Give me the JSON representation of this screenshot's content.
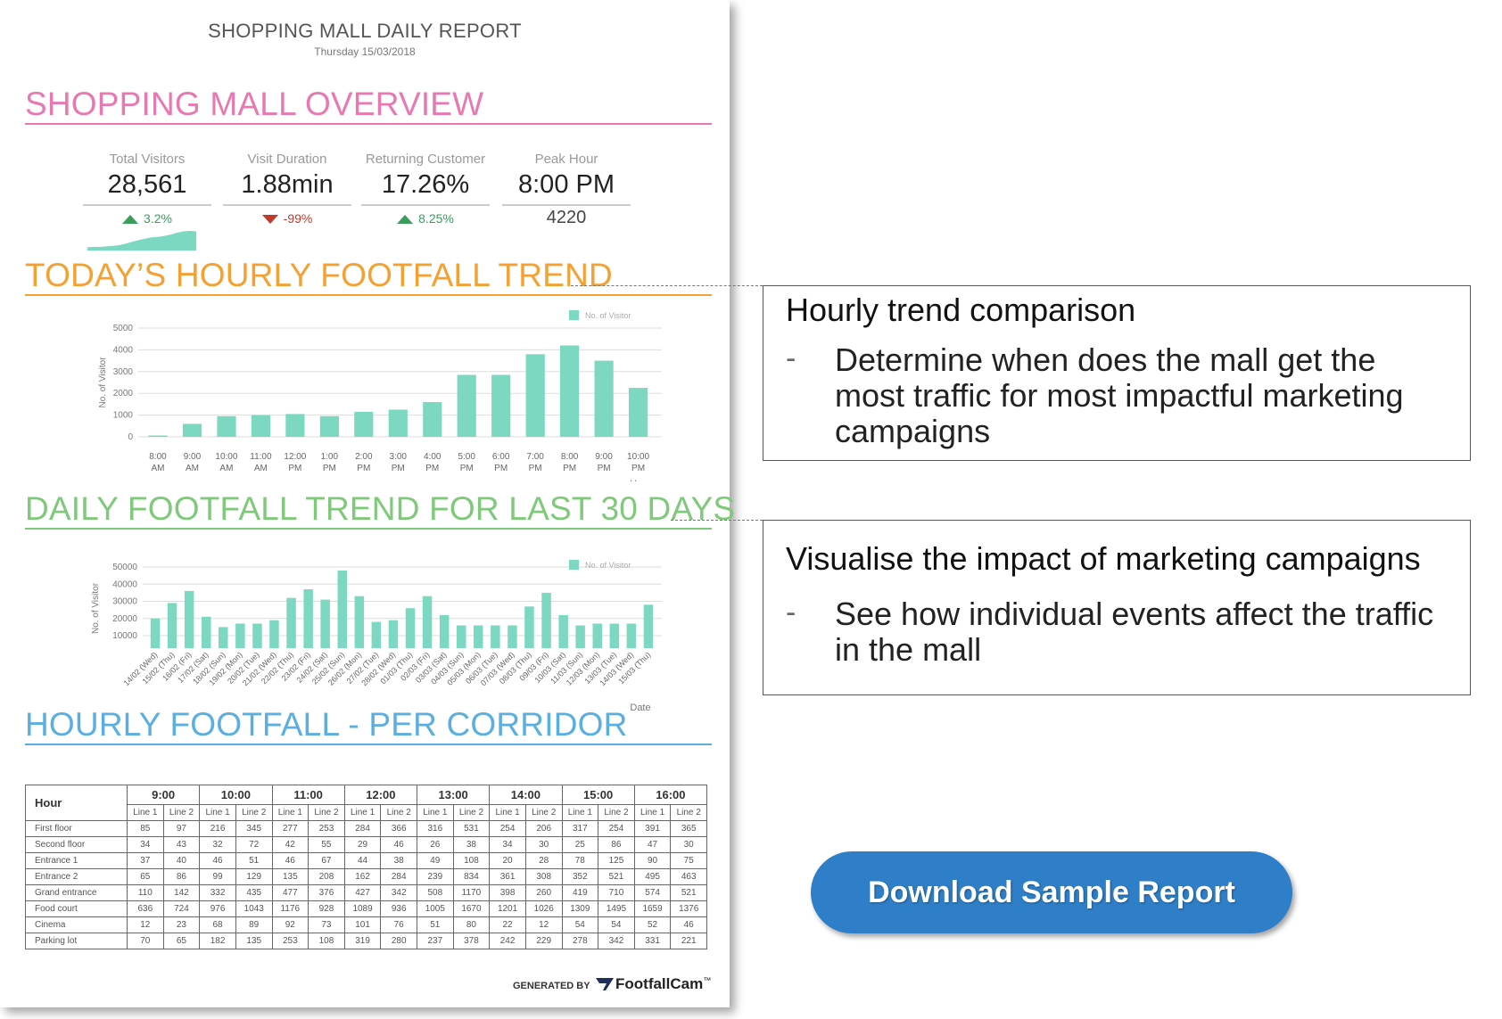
{
  "report": {
    "title": "SHOPPING MALL DAILY REPORT",
    "date": "Thursday 15/03/2018",
    "overview_title": "SHOPPING MALL OVERVIEW",
    "kpis": [
      {
        "label": "Total Visitors",
        "value": "28,561",
        "change": "3.2%",
        "direction": "up"
      },
      {
        "label": "Visit Duration",
        "value": "1.88min",
        "change": "-99%",
        "direction": "down"
      },
      {
        "label": "Returning Customer",
        "value": "17.26%",
        "change": "8.25%",
        "direction": "up"
      },
      {
        "label": "Peak Hour",
        "value": "8:00 PM",
        "sub": "4220"
      }
    ],
    "hourly_title": "TODAY’S HOURLY FOOTFALL TREND",
    "daily_title": "DAILY FOOTFALL TREND FOR LAST 30 DAYS",
    "corridor_title": "HOURLY FOOTFALL - PER CORRIDOR",
    "generated_by": "GENERATED BY",
    "brand": "FootfallCam",
    "brand_tm": "™"
  },
  "colors": {
    "pink": "#e879b0",
    "orange": "#f5a033",
    "green": "#7fc97a",
    "blue": "#5aaee0",
    "bar": "#7dd8c2",
    "button": "#2f7fc8"
  },
  "chart_data": [
    {
      "type": "area",
      "values": [
        0.7,
        0.8,
        0.8,
        0.9,
        1.0,
        1.2,
        1.5,
        1.9,
        2.3,
        2.6,
        2.9,
        3.0,
        3.2,
        3.5,
        3.9,
        4.2,
        4.3,
        4.2
      ]
    },
    {
      "type": "bar",
      "legend": "No. of Visitor",
      "ylabel": "No. of Visitor",
      "xlabel": "Hour",
      "ylim": [
        0,
        5000
      ],
      "yticks": [
        "0",
        "1000",
        "2000",
        "3000",
        "4000",
        "5000"
      ],
      "categories": [
        [
          "8:00",
          "AM"
        ],
        [
          "9:00",
          "AM"
        ],
        [
          "10:00",
          "AM"
        ],
        [
          "11:00",
          "AM"
        ],
        [
          "12:00",
          "PM"
        ],
        [
          "1:00",
          "PM"
        ],
        [
          "2:00",
          "PM"
        ],
        [
          "3:00",
          "PM"
        ],
        [
          "4:00",
          "PM"
        ],
        [
          "5:00",
          "PM"
        ],
        [
          "6:00",
          "PM"
        ],
        [
          "7:00",
          "PM"
        ],
        [
          "8:00",
          "PM"
        ],
        [
          "9:00",
          "PM"
        ],
        [
          "10:00",
          "PM"
        ]
      ],
      "values": [
        60,
        600,
        950,
        1000,
        1050,
        950,
        1150,
        1250,
        1600,
        2850,
        2850,
        3800,
        4200,
        3500,
        2250
      ]
    },
    {
      "type": "bar",
      "legend": "No. of Visitor",
      "ylabel": "No. of Visitor",
      "xlabel": "Date",
      "ylim": [
        0,
        50000
      ],
      "yticks": [
        "10000",
        "20000",
        "30000",
        "40000",
        "50000"
      ],
      "categories": [
        "14/02 (Wed)",
        "15/02 (Thu)",
        "16/02 (Fri)",
        "17/02 (Sat)",
        "18/02 (Sun)",
        "19/02 (Mon)",
        "20/02 (Tue)",
        "21/02 (Wed)",
        "22/02 (Thu)",
        "23/02 (Fri)",
        "24/02 (Sat)",
        "25/02 (Sun)",
        "26/02 (Mon)",
        "27/02 (Tue)",
        "28/02 (Wed)",
        "01/03 (Thu)",
        "02/03 (Fri)",
        "03/03 (Sat)",
        "04/03 (Sun)",
        "05/03 (Mon)",
        "06/03 (Tue)",
        "07/03 (Wed)",
        "08/03 (Thu)",
        "09/03 (Fri)",
        "10/03 (Sat)",
        "11/03 (Sun)",
        "12/03 (Mon)",
        "13/03 (Tue)",
        "14/03 (Wed)",
        "15/03 (Thu)"
      ],
      "values": [
        20000,
        29000,
        36000,
        21000,
        15000,
        17000,
        17000,
        19000,
        32000,
        37000,
        31000,
        48000,
        33000,
        18000,
        19000,
        26000,
        33000,
        22000,
        16000,
        16000,
        16000,
        16000,
        27000,
        35000,
        22000,
        16000,
        17000,
        17000,
        17000,
        28000
      ]
    }
  ],
  "corridor_table": {
    "hour_label": "Hour",
    "hours": [
      "9:00",
      "10:00",
      "11:00",
      "12:00",
      "13:00",
      "14:00",
      "15:00",
      "16:00"
    ],
    "line_labels": [
      "Line 1",
      "Line 2"
    ],
    "rows": [
      {
        "name": "First floor",
        "values": [
          "85",
          "97",
          "216",
          "345",
          "277",
          "253",
          "284",
          "366",
          "316",
          "531",
          "254",
          "206",
          "317",
          "254",
          "391",
          "365"
        ]
      },
      {
        "name": "Second floor",
        "values": [
          "34",
          "43",
          "32",
          "72",
          "42",
          "55",
          "29",
          "46",
          "26",
          "38",
          "34",
          "30",
          "25",
          "86",
          "47",
          "30"
        ]
      },
      {
        "name": "Entrance 1",
        "values": [
          "37",
          "40",
          "46",
          "51",
          "46",
          "67",
          "44",
          "38",
          "49",
          "108",
          "20",
          "28",
          "78",
          "125",
          "90",
          "75"
        ]
      },
      {
        "name": "Entrance 2",
        "values": [
          "65",
          "86",
          "99",
          "129",
          "135",
          "208",
          "162",
          "284",
          "239",
          "834",
          "361",
          "308",
          "352",
          "521",
          "495",
          "463"
        ]
      },
      {
        "name": "Grand entrance",
        "values": [
          "110",
          "142",
          "332",
          "435",
          "477",
          "376",
          "427",
          "342",
          "508",
          "1170",
          "398",
          "260",
          "419",
          "710",
          "574",
          "521"
        ]
      },
      {
        "name": "Food court",
        "values": [
          "636",
          "724",
          "976",
          "1043",
          "1176",
          "928",
          "1089",
          "936",
          "1005",
          "1670",
          "1201",
          "1026",
          "1309",
          "1495",
          "1659",
          "1376"
        ]
      },
      {
        "name": "Cinema",
        "values": [
          "12",
          "23",
          "68",
          "89",
          "92",
          "73",
          "101",
          "76",
          "51",
          "80",
          "22",
          "12",
          "54",
          "54",
          "52",
          "46"
        ]
      },
      {
        "name": "Parking lot",
        "values": [
          "70",
          "65",
          "182",
          "135",
          "253",
          "108",
          "319",
          "280",
          "237",
          "378",
          "242",
          "229",
          "278",
          "342",
          "331",
          "221"
        ]
      }
    ]
  },
  "callouts": [
    {
      "title": "Hourly trend comparison",
      "bullet": "-",
      "text_lines": [
        "Determine when does the mall get the",
        "most traffic for most impactful marketing",
        "campaigns"
      ]
    },
    {
      "title": "Visualise the impact of marketing campaigns",
      "bullet": "-",
      "text_lines": [
        "See how individual events affect the traffic",
        "in the mall"
      ]
    }
  ],
  "download_button": {
    "label": "Download Sample Report"
  }
}
